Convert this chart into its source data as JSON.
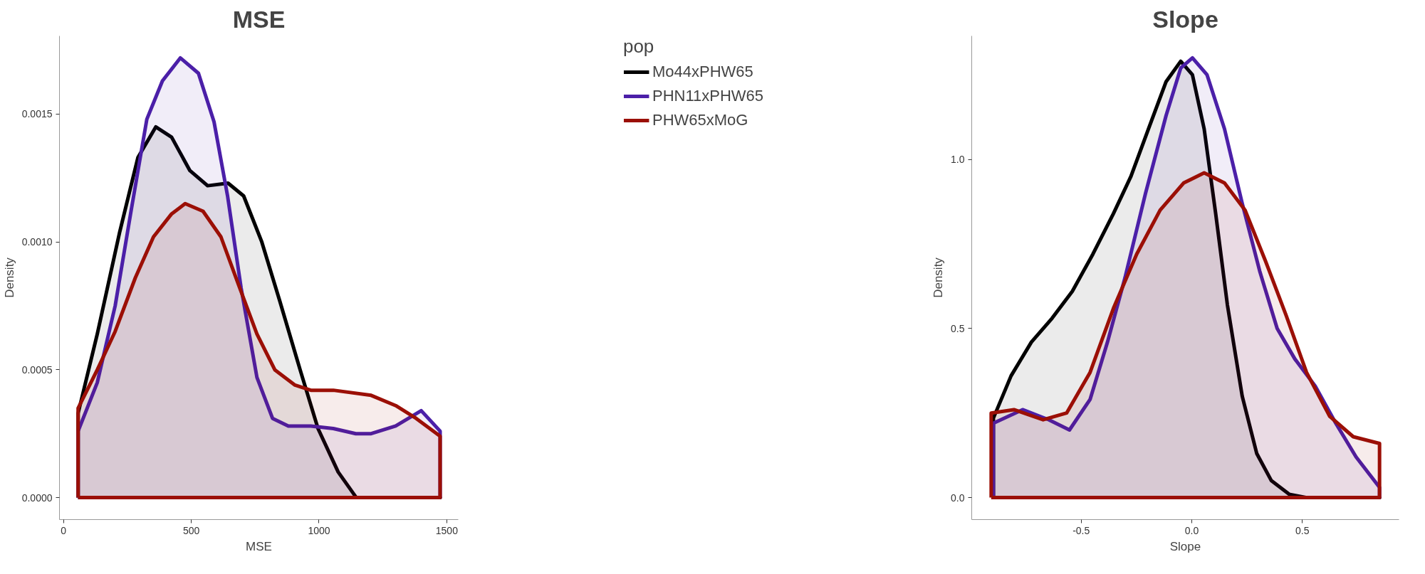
{
  "chart_data": [
    {
      "type": "area",
      "title": "MSE",
      "xlabel": "MSE",
      "ylabel": "Density",
      "legend_title": "pop",
      "legend": "right",
      "grid": false,
      "xlim": [
        -16,
        1545
      ],
      "ylim": [
        -8.6e-05,
        0.001806
      ],
      "xticks": [
        0,
        500,
        1000,
        1500
      ],
      "yticks": [
        {
          "value": 0,
          "label": "0.0000"
        },
        {
          "value": 0.0005,
          "label": "0.0005"
        },
        {
          "value": 0.001,
          "label": "0.0010"
        },
        {
          "value": 0.0015,
          "label": "0.0015"
        }
      ],
      "series": [
        {
          "name": "Mo44xPHW65",
          "color": "#000000",
          "x": [
            57,
            132,
            220,
            291,
            361,
            423,
            494,
            564,
            644,
            705,
            776,
            846,
            926,
            996,
            1075,
            1146,
            1300,
            1474
          ],
          "values": [
            0.00033,
            0.00064,
            0.00104,
            0.00133,
            0.00145,
            0.00141,
            0.00128,
            0.00122,
            0.00123,
            0.00118,
            0.001,
            0.00077,
            0.0005,
            0.00027,
            0.0001,
            0.0,
            0.0,
            0.0
          ]
        },
        {
          "name": "PHN11xPHW65",
          "color": "#4b1fa8",
          "x": [
            57,
            132,
            202,
            264,
            326,
            387,
            457,
            528,
            589,
            642,
            695,
            757,
            818,
            880,
            968,
            1056,
            1144,
            1204,
            1300,
            1400,
            1474
          ],
          "values": [
            0.00026,
            0.00045,
            0.00075,
            0.00112,
            0.00148,
            0.00163,
            0.00172,
            0.00166,
            0.00147,
            0.00118,
            0.00082,
            0.00047,
            0.00031,
            0.00028,
            0.00028,
            0.00027,
            0.00025,
            0.00025,
            0.00028,
            0.00034,
            0.00026
          ]
        },
        {
          "name": "PHW65xMoG",
          "color": "#9b0f06",
          "x": [
            57,
            132,
            202,
            281,
            352,
            423,
            476,
            546,
            616,
            686,
            757,
            827,
            906,
            968,
            1056,
            1204,
            1300,
            1380,
            1474
          ],
          "values": [
            0.00035,
            0.0005,
            0.00065,
            0.00086,
            0.00102,
            0.00111,
            0.00115,
            0.00112,
            0.00102,
            0.00083,
            0.00064,
            0.0005,
            0.00044,
            0.00042,
            0.00042,
            0.0004,
            0.00036,
            0.00031,
            0.00024
          ]
        }
      ]
    },
    {
      "type": "area",
      "title": "Slope",
      "xlabel": "Slope",
      "ylabel": "Density",
      "grid": false,
      "xlim": [
        -0.995,
        0.937
      ],
      "ylim": [
        -0.065,
        1.365
      ],
      "xticks": [
        {
          "value": -0.5,
          "label": "-0.5"
        },
        {
          "value": 0,
          "label": "0.0"
        },
        {
          "value": 0.5,
          "label": "0.5"
        }
      ],
      "yticks": [
        {
          "value": 0,
          "label": "0.0"
        },
        {
          "value": 0.5,
          "label": "0.5"
        },
        {
          "value": 1,
          "label": "1.0"
        }
      ],
      "series": [
        {
          "color": "#000000",
          "x": [
            -0.897,
            -0.817,
            -0.725,
            -0.632,
            -0.54,
            -0.447,
            -0.354,
            -0.275,
            -0.196,
            -0.116,
            -0.05,
            0.003,
            0.056,
            0.108,
            0.161,
            0.228,
            0.294,
            0.36,
            0.44,
            0.52,
            0.849
          ],
          "values": [
            0.235,
            0.36,
            0.46,
            0.53,
            0.61,
            0.72,
            0.84,
            0.95,
            1.09,
            1.23,
            1.29,
            1.25,
            1.09,
            0.84,
            0.57,
            0.3,
            0.13,
            0.05,
            0.01,
            0.0,
            0.0
          ]
        },
        {
          "color": "#4b1fa8",
          "x": [
            -0.897,
            -0.765,
            -0.646,
            -0.553,
            -0.46,
            -0.381,
            -0.302,
            -0.209,
            -0.116,
            -0.05,
            0.003,
            0.069,
            0.148,
            0.228,
            0.307,
            0.386,
            0.466,
            0.558,
            0.651,
            0.743,
            0.849
          ],
          "values": [
            0.22,
            0.26,
            0.23,
            0.2,
            0.29,
            0.46,
            0.65,
            0.9,
            1.13,
            1.27,
            1.3,
            1.25,
            1.09,
            0.87,
            0.67,
            0.5,
            0.41,
            0.33,
            0.22,
            0.12,
            0.03
          ]
        },
        {
          "color": "#9b0f06",
          "x": [
            -0.907,
            -0.804,
            -0.672,
            -0.566,
            -0.46,
            -0.354,
            -0.249,
            -0.143,
            -0.037,
            0.056,
            0.148,
            0.241,
            0.333,
            0.426,
            0.519,
            0.624,
            0.73,
            0.849
          ],
          "values": [
            0.25,
            0.26,
            0.23,
            0.25,
            0.37,
            0.56,
            0.72,
            0.85,
            0.93,
            0.96,
            0.93,
            0.85,
            0.7,
            0.54,
            0.37,
            0.24,
            0.18,
            0.16
          ]
        }
      ]
    }
  ]
}
